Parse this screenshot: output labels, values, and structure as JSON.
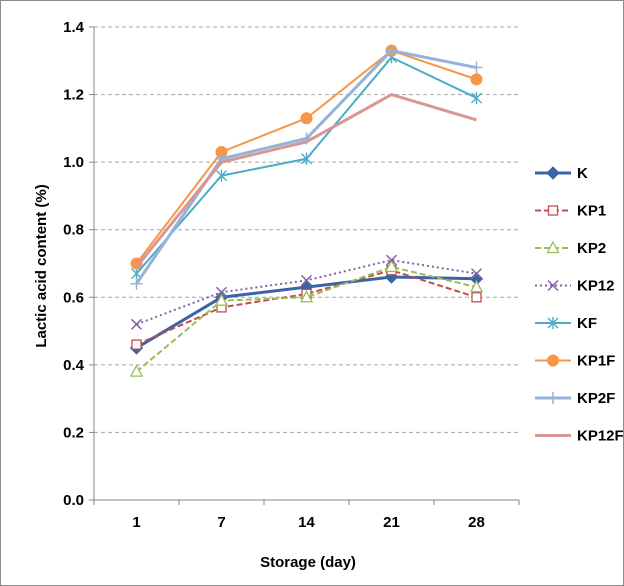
{
  "chart_data": {
    "type": "line",
    "title": "",
    "xlabel": "Storage (day)",
    "ylabel": "Lactic acid content (%)",
    "categories": [
      "1",
      "7",
      "14",
      "21",
      "28"
    ],
    "ylim": [
      0,
      1.4
    ],
    "yticks": [
      "0.0",
      "0.2",
      "0.4",
      "0.6",
      "0.8",
      "1.0",
      "1.2",
      "1.4"
    ],
    "grid": true,
    "legend_position": "right",
    "series": [
      {
        "name": "K",
        "values": [
          0.45,
          0.6,
          0.63,
          0.66,
          0.655
        ],
        "color": "#3a63a8",
        "dash": "solid",
        "marker": "diamond",
        "width": 3
      },
      {
        "name": "KP1",
        "values": [
          0.46,
          0.57,
          0.61,
          0.68,
          0.6
        ],
        "color": "#c0504d",
        "dash": "dashed",
        "marker": "square",
        "width": 2
      },
      {
        "name": "KP2",
        "values": [
          0.38,
          0.59,
          0.6,
          0.69,
          0.63
        ],
        "color": "#9bbb59",
        "dash": "dashed",
        "marker": "triangle",
        "width": 2
      },
      {
        "name": "KP12",
        "values": [
          0.52,
          0.615,
          0.65,
          0.71,
          0.67
        ],
        "color": "#8064a2",
        "dash": "dotted",
        "marker": "x",
        "width": 2
      },
      {
        "name": "KF",
        "values": [
          0.67,
          0.96,
          1.01,
          1.31,
          1.19
        ],
        "color": "#4bacc6",
        "dash": "solid",
        "marker": "star",
        "width": 2
      },
      {
        "name": "KP1F",
        "values": [
          0.7,
          1.03,
          1.13,
          1.33,
          1.245
        ],
        "color": "#f79646",
        "dash": "solid",
        "marker": "circle",
        "width": 2
      },
      {
        "name": "KP2F",
        "values": [
          0.64,
          1.01,
          1.07,
          1.33,
          1.28
        ],
        "color": "#95b3d7",
        "dash": "solid",
        "marker": "plus",
        "width": 3
      },
      {
        "name": "KP12F",
        "values": [
          0.69,
          1.0,
          1.06,
          1.2,
          1.125
        ],
        "color": "#d99694",
        "dash": "solid",
        "marker": "none",
        "width": 3
      }
    ]
  }
}
